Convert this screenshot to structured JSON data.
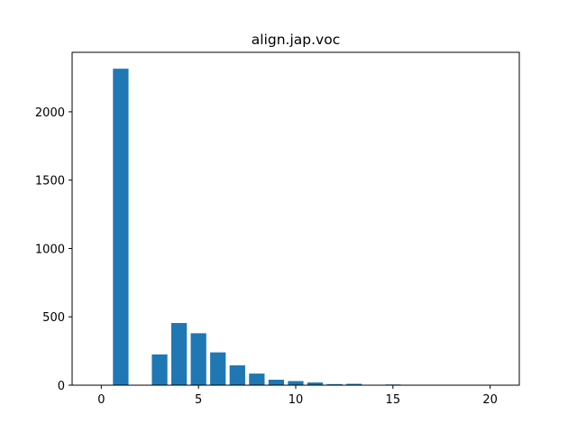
{
  "chart_data": {
    "type": "bar",
    "title": "align.jap.voc",
    "xlabel": "",
    "ylabel": "",
    "x": [
      1,
      3,
      4,
      5,
      6,
      7,
      8,
      9,
      10,
      11,
      12,
      13,
      15,
      16
    ],
    "values": [
      2315,
      225,
      455,
      380,
      240,
      145,
      85,
      40,
      30,
      20,
      8,
      10,
      5,
      3
    ],
    "xlim": [
      -1.5,
      21.5
    ],
    "ylim": [
      0,
      2435
    ],
    "xticks": [
      0,
      5,
      10,
      15,
      20
    ],
    "yticks": [
      0,
      500,
      1000,
      1500,
      2000
    ],
    "bar_width": 0.8,
    "bar_color": "#1f77b4",
    "grid": false,
    "legend": "none"
  }
}
